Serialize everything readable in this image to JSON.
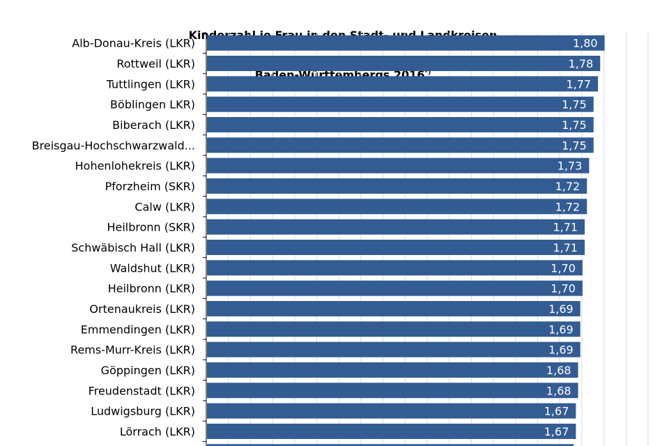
{
  "chart_data": {
    "type": "bar",
    "orientation": "horizontal",
    "title_line1": "Kinderzahl je Frau in den Stadt- und Landkreisen",
    "title_line2": "Baden-Württembergs 2016",
    "title_marker": "*)",
    "categories": [
      "Alb-Donau-Kreis (LKR)",
      "Rottweil (LKR)",
      "Tuttlingen (LKR)",
      "Böblingen LKR)",
      "Biberach (LKR)",
      "Breisgau-Hochschwarzwald...",
      "Hohenlohekreis (LKR)",
      "Pforzheim (SKR)",
      "Calw (LKR)",
      "Heilbronn (SKR)",
      "Schwäbisch Hall (LKR)",
      "Waldshut (LKR)",
      "Heilbronn (LKR)",
      "Ortenaukreis (LKR)",
      "Emmendingen (LKR)",
      "Rems-Murr-Kreis  (LKR)",
      "Göppingen (LKR)",
      "Freudenstadt (LKR)",
      "Ludwigsburg (LKR)",
      "Lörrach (LKR)",
      ""
    ],
    "values": [
      1.8,
      1.78,
      1.77,
      1.75,
      1.75,
      1.75,
      1.73,
      1.72,
      1.72,
      1.71,
      1.71,
      1.7,
      1.7,
      1.69,
      1.69,
      1.69,
      1.68,
      1.68,
      1.67,
      1.67,
      1.66
    ],
    "value_labels": [
      "1,80",
      "1,78",
      "1,77",
      "1,75",
      "1,75",
      "1,75",
      "1,73",
      "1,72",
      "1,72",
      "1,71",
      "1,71",
      "1,70",
      "1,70",
      "1,69",
      "1,69",
      "1,69",
      "1,68",
      "1,68",
      "1,67",
      "1,67",
      ""
    ],
    "xlim": [
      0,
      2.0
    ],
    "grid": true,
    "bar_color": "#335c93",
    "grid_color": "#d9d9d9"
  }
}
